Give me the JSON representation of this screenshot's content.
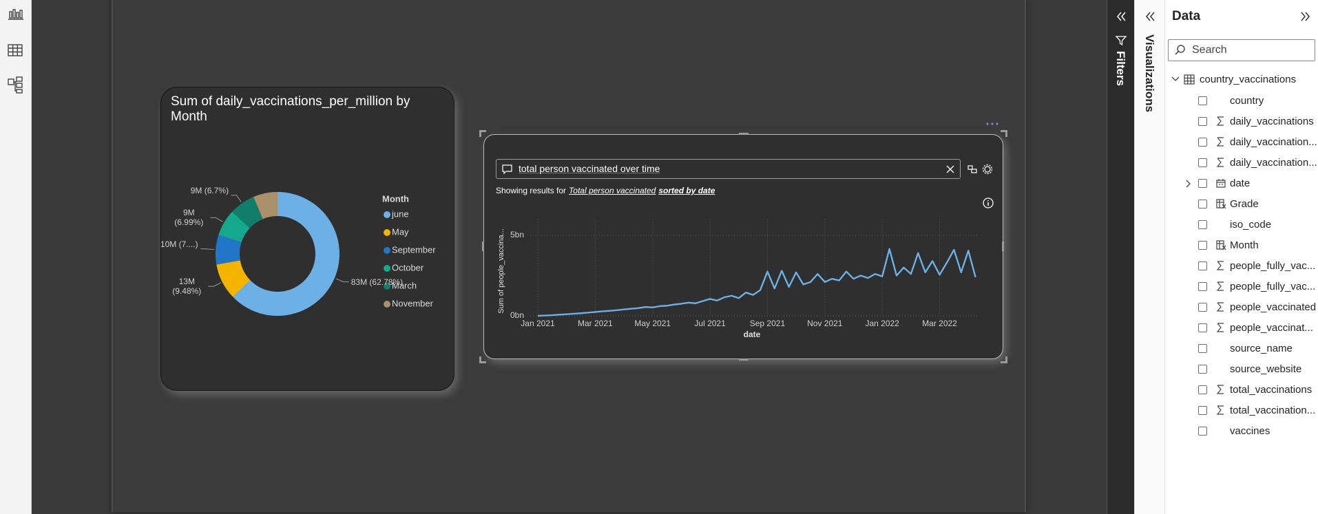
{
  "chart_data": [
    {
      "type": "donut",
      "title": "Sum of daily_vaccinations_per_million by Month",
      "legend_title": "Month",
      "categories": [
        "june",
        "May",
        "September",
        "October",
        "March",
        "November"
      ],
      "values": [
        83000000,
        12530000,
        10180000,
        9240000,
        8860000,
        8400000
      ],
      "value_labels": [
        "83M (62.78%)",
        "13M (9.48%)",
        "10M (7....)",
        "9M (6.99%)",
        "9M (6.7%)",
        null
      ],
      "colors": [
        "#6cb0e6",
        "#f5b400",
        "#2176c7",
        "#16a88c",
        "#127c6b",
        "#a98f6a"
      ]
    },
    {
      "type": "line",
      "x": [
        "Jan 2021",
        null,
        null,
        null,
        null,
        null,
        null,
        null,
        "Mar 2021",
        null,
        null,
        null,
        null,
        null,
        null,
        null,
        "May 2021",
        null,
        null,
        null,
        null,
        null,
        null,
        null,
        "Jul 2021",
        null,
        null,
        null,
        null,
        null,
        null,
        null,
        "Sep 2021",
        null,
        null,
        null,
        null,
        null,
        null,
        null,
        "Nov 2021",
        null,
        null,
        null,
        null,
        null,
        null,
        null,
        "Jan 2022",
        null,
        null,
        null,
        null,
        null,
        null,
        null,
        "Mar 2022",
        null,
        null,
        null,
        null,
        null
      ],
      "values": [
        0.0,
        0.02,
        0.04,
        0.07,
        0.1,
        0.13,
        0.16,
        0.2,
        0.24,
        0.28,
        0.31,
        0.35,
        0.4,
        0.44,
        0.48,
        0.55,
        0.52,
        0.6,
        0.63,
        0.7,
        0.75,
        0.82,
        0.78,
        0.92,
        1.05,
        0.95,
        1.15,
        1.25,
        1.1,
        1.45,
        1.3,
        1.6,
        2.75,
        1.7,
        2.8,
        1.8,
        2.7,
        1.95,
        2.1,
        2.6,
        2.1,
        2.3,
        2.2,
        2.75,
        2.3,
        2.5,
        2.35,
        2.6,
        2.45,
        4.15,
        2.5,
        3.0,
        2.6,
        3.9,
        2.7,
        3.4,
        2.55,
        3.3,
        4.1,
        2.7,
        4.05,
        2.4
      ],
      "color": "#6cb0e6",
      "xlabel": "date",
      "ylabel": "Sum of people_vaccina...",
      "ylim": [
        0,
        6
      ],
      "yticks": [
        {
          "value": 0,
          "label": "0bn"
        },
        {
          "value": 5,
          "label": "5bn"
        }
      ],
      "grid": true
    }
  ],
  "qna": {
    "query": "total person vaccinated over time",
    "prefix": "Showing results for",
    "phrase": "Total person vaccinated",
    "sort": "sorted by date"
  },
  "panes": {
    "filters": "Filters",
    "visualizations": "Visualizations",
    "data": {
      "title": "Data",
      "search": "Search",
      "table": "country_vaccinations",
      "fields": [
        {
          "name": "country",
          "icon": "none"
        },
        {
          "name": "daily_vaccinations",
          "icon": "sigma"
        },
        {
          "name": "daily_vaccination...",
          "icon": "sigma"
        },
        {
          "name": "daily_vaccination...",
          "icon": "sigma"
        },
        {
          "name": "date",
          "icon": "calendar",
          "expandable": true
        },
        {
          "name": "Grade",
          "icon": "calc"
        },
        {
          "name": "iso_code",
          "icon": "none"
        },
        {
          "name": "Month",
          "icon": "calc"
        },
        {
          "name": "people_fully_vac...",
          "icon": "sigma"
        },
        {
          "name": "people_fully_vac...",
          "icon": "sigma"
        },
        {
          "name": "people_vaccinated",
          "icon": "sigma"
        },
        {
          "name": "people_vaccinat...",
          "icon": "sigma"
        },
        {
          "name": "source_name",
          "icon": "none"
        },
        {
          "name": "source_website",
          "icon": "none"
        },
        {
          "name": "total_vaccinations",
          "icon": "sigma"
        },
        {
          "name": "total_vaccination...",
          "icon": "sigma"
        },
        {
          "name": "vaccines",
          "icon": "none"
        }
      ]
    }
  }
}
